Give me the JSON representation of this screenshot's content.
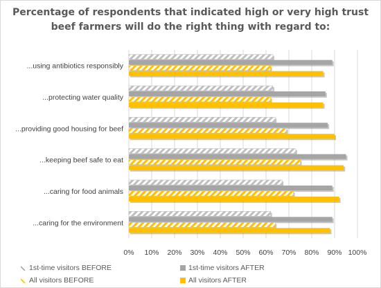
{
  "chart_data": {
    "type": "bar",
    "orientation": "horizontal",
    "title": "Percentage of respondents that indicated high or very high trust\nbeef farmers will do the right thing with regard to:",
    "categories": [
      "...using antibiotics responsibly",
      "...protecting water quality",
      "...providing good housing for beef",
      "...keeping beef safe to eat",
      "...caring for food animals",
      "...caring for the environment"
    ],
    "series": [
      {
        "name": "1st-time visitors BEFORE",
        "color": "#d9d9d9",
        "pattern": "diagonal-stripes",
        "values": [
          63,
          63,
          64,
          73,
          67,
          62
        ]
      },
      {
        "name": "1st-time visitors AFTER",
        "color": "#a5a5a5",
        "pattern": "solid",
        "values": [
          89,
          86,
          87,
          95,
          89,
          89
        ]
      },
      {
        "name": "All visitors BEFORE",
        "color": "#ffc000",
        "pattern": "diagonal-stripes",
        "values": [
          62,
          62,
          69,
          75,
          72,
          64
        ]
      },
      {
        "name": "All visitors AFTER",
        "color": "#ffc000",
        "pattern": "solid",
        "values": [
          85,
          85,
          90,
          94,
          92,
          88
        ]
      }
    ],
    "xlim": [
      0,
      100
    ],
    "x_ticks": [
      "0%",
      "10%",
      "20%",
      "30%",
      "40%",
      "50%",
      "60%",
      "70%",
      "80%",
      "90%",
      "100%"
    ],
    "grid": true,
    "legend_position": "bottom"
  }
}
